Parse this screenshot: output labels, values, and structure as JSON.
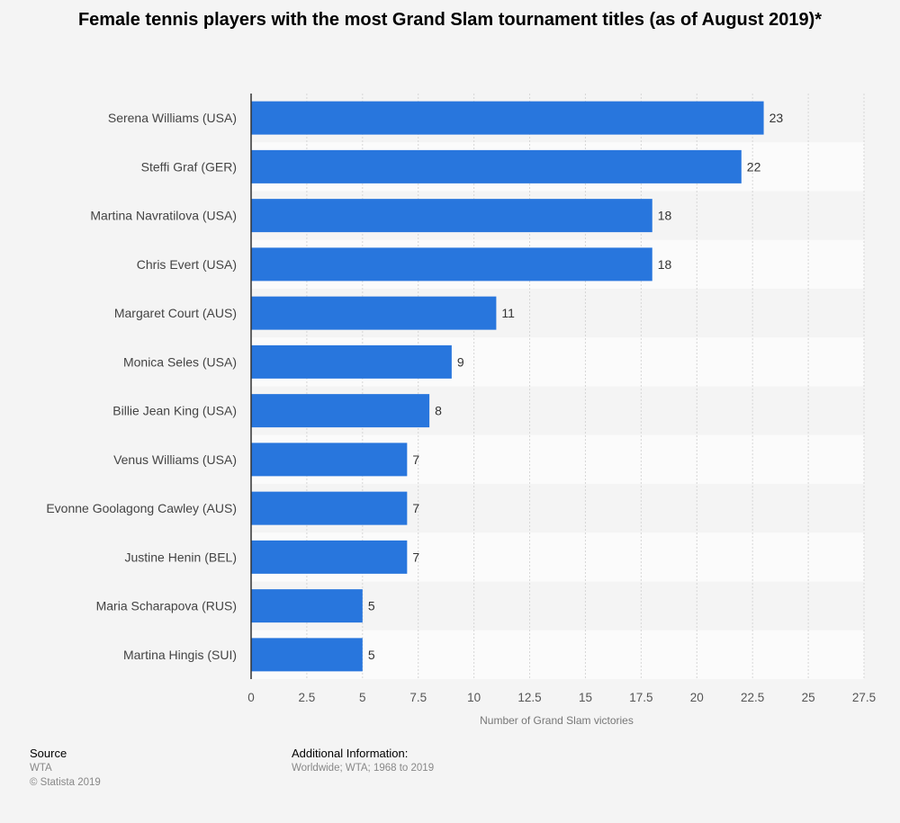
{
  "chart_data": {
    "type": "bar",
    "orientation": "horizontal",
    "title": "Female tennis players with the most Grand Slam tournament titles (as of August 2019)*",
    "xlabel": "Number of Grand Slam victories",
    "ylabel": "",
    "xlim": [
      0,
      27.5
    ],
    "ticks": [
      "0",
      "2.5",
      "5",
      "7.5",
      "10",
      "12.5",
      "15",
      "17.5",
      "20",
      "22.5",
      "25",
      "27.5"
    ],
    "categories": [
      "Serena Williams (USA)",
      "Steffi Graf (GER)",
      "Martina Navratilova (USA)",
      "Chris Evert (USA)",
      "Margaret Court (AUS)",
      "Monica Seles (USA)",
      "Billie Jean King (USA)",
      "Venus Williams (USA)",
      "Evonne Goolagong Cawley (AUS)",
      "Justine Henin (BEL)",
      "Maria Scharapova (RUS)",
      "Martina Hingis (SUI)"
    ],
    "values": [
      23,
      22,
      18,
      18,
      11,
      9,
      8,
      7,
      7,
      7,
      5,
      5
    ],
    "bar_color": "#2876dd",
    "grid": true,
    "data_labels": true
  },
  "footer": {
    "source_label": "Source",
    "source_lines": [
      "WTA",
      "© Statista 2019"
    ],
    "info_label": "Additional Information:",
    "info_text": "Worldwide; WTA; 1968 to 2019"
  }
}
